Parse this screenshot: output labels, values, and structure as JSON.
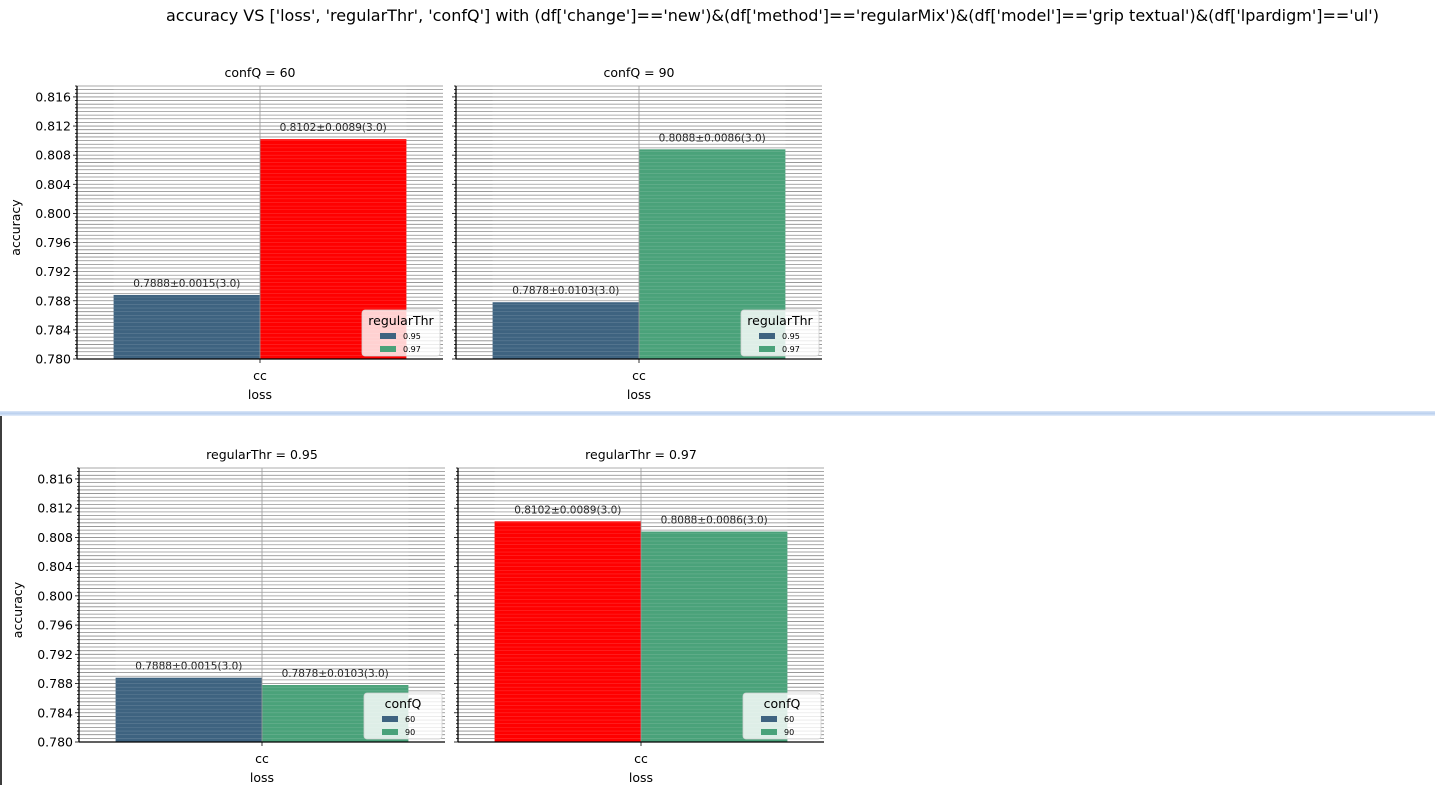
{
  "title": "accuracy VS ['loss', 'regularThr', 'confQ'] with (df['change']=='new')&(df['method']=='regularMix')&(df['model']=='grip textual')&(df['lpardigm']=='ul')",
  "colors": {
    "dark_blue": "#3e6380",
    "green": "#4aa27a",
    "red": "#ff0000",
    "grid": "#8a8a8a"
  },
  "chart_data": [
    {
      "type": "bar",
      "title": "confQ = 60",
      "xlabel": "loss",
      "ylabel": "accuracy",
      "categories": [
        "cc"
      ],
      "ylim": [
        0.78,
        0.8175
      ],
      "yticks": [
        "0.780",
        "0.784",
        "0.788",
        "0.792",
        "0.796",
        "0.800",
        "0.804",
        "0.808",
        "0.812",
        "0.816"
      ],
      "grid": true,
      "series": [
        {
          "name": "0.95",
          "values": [
            0.7888
          ],
          "color": "#3e6380",
          "label": "0.7888±0.0015(3.0)"
        },
        {
          "name": "0.97",
          "values": [
            0.8102
          ],
          "color": "#ff0000",
          "label": "0.8102±0.0089(3.0)"
        }
      ],
      "legend": {
        "title": "regularThr",
        "placement": "lower-right",
        "entries": [
          {
            "label": "0.95",
            "color": "#3e6380"
          },
          {
            "label": "0.97",
            "color": "#4aa27a"
          }
        ]
      }
    },
    {
      "type": "bar",
      "title": "confQ = 90",
      "xlabel": "loss",
      "ylabel": "",
      "categories": [
        "cc"
      ],
      "ylim": [
        0.78,
        0.8175
      ],
      "yticks": [],
      "grid": true,
      "series": [
        {
          "name": "0.95",
          "values": [
            0.7878
          ],
          "color": "#3e6380",
          "label": "0.7878±0.0103(3.0)"
        },
        {
          "name": "0.97",
          "values": [
            0.8088
          ],
          "color": "#4aa27a",
          "label": "0.8088±0.0086(3.0)"
        }
      ],
      "legend": {
        "title": "regularThr",
        "placement": "lower-right",
        "entries": [
          {
            "label": "0.95",
            "color": "#3e6380"
          },
          {
            "label": "0.97",
            "color": "#4aa27a"
          }
        ]
      }
    },
    {
      "type": "bar",
      "title": "regularThr = 0.95",
      "xlabel": "loss",
      "ylabel": "accuracy",
      "categories": [
        "cc"
      ],
      "ylim": [
        0.78,
        0.8175
      ],
      "yticks": [
        "0.780",
        "0.784",
        "0.788",
        "0.792",
        "0.796",
        "0.800",
        "0.804",
        "0.808",
        "0.812",
        "0.816"
      ],
      "grid": true,
      "series": [
        {
          "name": "60",
          "values": [
            0.7888
          ],
          "color": "#3e6380",
          "label": "0.7888±0.0015(3.0)"
        },
        {
          "name": "90",
          "values": [
            0.7878
          ],
          "color": "#4aa27a",
          "label": "0.7878±0.0103(3.0)"
        }
      ],
      "legend": {
        "title": "confQ",
        "placement": "lower-right",
        "entries": [
          {
            "label": "60",
            "color": "#3e6380"
          },
          {
            "label": "90",
            "color": "#4aa27a"
          }
        ]
      }
    },
    {
      "type": "bar",
      "title": "regularThr = 0.97",
      "xlabel": "loss",
      "ylabel": "",
      "categories": [
        "cc"
      ],
      "ylim": [
        0.78,
        0.8175
      ],
      "yticks": [],
      "grid": true,
      "series": [
        {
          "name": "60",
          "values": [
            0.8102
          ],
          "color": "#ff0000",
          "label": "0.8102±0.0089(3.0)"
        },
        {
          "name": "90",
          "values": [
            0.8088
          ],
          "color": "#4aa27a",
          "label": "0.8088±0.0086(3.0)"
        }
      ],
      "legend": {
        "title": "confQ",
        "placement": "lower-right",
        "entries": [
          {
            "label": "60",
            "color": "#3e6380"
          },
          {
            "label": "90",
            "color": "#4aa27a"
          }
        ]
      }
    }
  ]
}
